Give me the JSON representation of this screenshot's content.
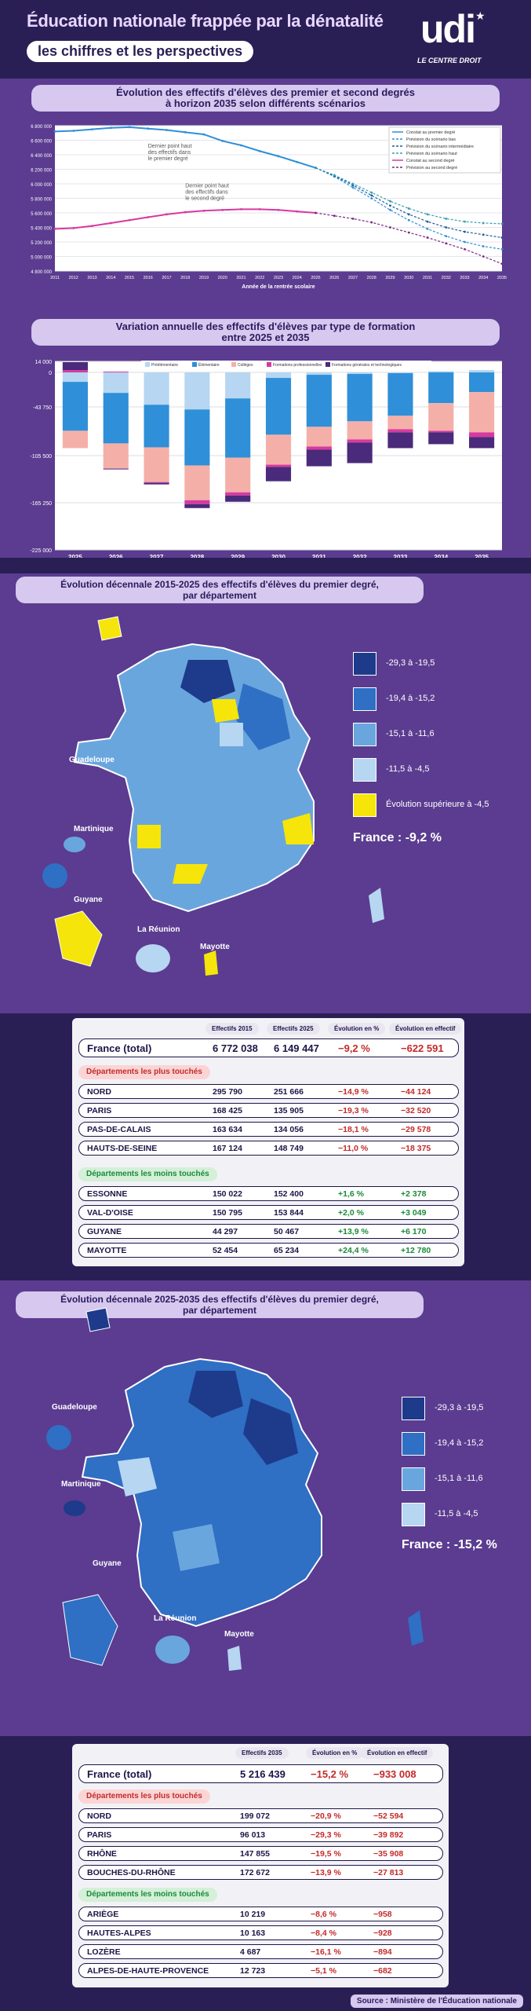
{
  "header": {
    "title": "Éducation nationale frappée par la dénatalité",
    "subtitle": "les chiffres et les perspectives",
    "logo_text": "udi",
    "logo_tag": "LE CENTRE DROIT"
  },
  "colors": {
    "bg_dark": "#2a1f55",
    "purple": "#5a3a8e",
    "dark_blue": "#1e3a8a",
    "mid_blue": "#2f6fc4",
    "light_blue": "#6aa6de",
    "pale_blue": "#b6d6f2",
    "yellow": "#f5e50a",
    "red": "#c42a2a",
    "green": "#1b8a3a"
  },
  "chart1": {
    "title_line1": "Évolution des effectifs d'élèves des premier et second degrés",
    "title_line2": "à horizon 2035 selon différents scénarios",
    "xlabel": "Année de la rentrée scolaire",
    "annotation1": [
      "Dernier point haut",
      "des effectifs dans",
      "le premier degré"
    ],
    "annotation2": [
      "Dernier point haut",
      "des effectifs dans",
      "le second degré"
    ],
    "legend": [
      "Constat au premier degré",
      "Prévision du scénario bas",
      "Prévision du scénario intermédiaire",
      "Prévision du scénario haut",
      "Constat au second degré",
      "Prévision au second degré"
    ],
    "yticks": [
      "6 800 000",
      "6 600 000",
      "6 400 000",
      "6 200 000",
      "6 000 000",
      "5 800 000",
      "5 600 000",
      "5 400 000",
      "5 200 000",
      "5 000 000",
      "4 800 000"
    ]
  },
  "chart_data": [
    {
      "type": "line",
      "title": "Évolution des effectifs d'élèves des premier et second degrés à horizon 2035 selon différents scénarios",
      "xlabel": "Année de la rentrée scolaire",
      "ylim": [
        4800000,
        6800000
      ],
      "x": [
        2011,
        2012,
        2013,
        2014,
        2015,
        2016,
        2017,
        2018,
        2019,
        2020,
        2021,
        2022,
        2023,
        2024,
        2025,
        2026,
        2027,
        2028,
        2029,
        2030,
        2031,
        2032,
        2033,
        2034,
        2035
      ],
      "series": [
        {
          "name": "Constat au premier degré",
          "values": [
            6720000,
            6730000,
            6750000,
            6770000,
            6780000,
            6760000,
            6740000,
            6710000,
            6680000,
            6590000,
            6530000,
            6450000,
            6380000,
            6300000,
            6220000,
            null,
            null,
            null,
            null,
            null,
            null,
            null,
            null,
            null,
            null
          ]
        },
        {
          "name": "Prévision du scénario bas",
          "values": [
            null,
            null,
            null,
            null,
            null,
            null,
            null,
            null,
            null,
            null,
            null,
            null,
            null,
            null,
            6220000,
            6100000,
            5950000,
            5800000,
            5640000,
            5500000,
            5380000,
            5280000,
            5200000,
            5140000,
            5100000
          ]
        },
        {
          "name": "Prévision du scénario intermédiaire",
          "values": [
            null,
            null,
            null,
            null,
            null,
            null,
            null,
            null,
            null,
            null,
            null,
            null,
            null,
            null,
            6220000,
            6110000,
            5980000,
            5840000,
            5700000,
            5580000,
            5480000,
            5400000,
            5340000,
            5300000,
            5260000
          ]
        },
        {
          "name": "Prévision du scénario haut",
          "values": [
            null,
            null,
            null,
            null,
            null,
            null,
            null,
            null,
            null,
            null,
            null,
            null,
            null,
            null,
            6220000,
            6120000,
            6000000,
            5880000,
            5760000,
            5660000,
            5580000,
            5520000,
            5480000,
            5460000,
            5450000
          ]
        },
        {
          "name": "Constat au second degré",
          "values": [
            5380000,
            5390000,
            5420000,
            5460000,
            5500000,
            5540000,
            5580000,
            5610000,
            5630000,
            5640000,
            5650000,
            5650000,
            5640000,
            5620000,
            5600000,
            null,
            null,
            null,
            null,
            null,
            null,
            null,
            null,
            null,
            null
          ]
        },
        {
          "name": "Prévision au second degré",
          "values": [
            null,
            null,
            null,
            null,
            null,
            null,
            null,
            null,
            null,
            null,
            null,
            null,
            null,
            null,
            5600000,
            5560000,
            5520000,
            5470000,
            5400000,
            5330000,
            5260000,
            5180000,
            5100000,
            5000000,
            4900000
          ]
        }
      ]
    },
    {
      "type": "bar",
      "title": "Variation annuelle des effectifs d'élèves par type de formation entre 2025 et 2035",
      "categories": [
        "2025",
        "2026",
        "2027",
        "2028",
        "2029",
        "2030",
        "2031",
        "2032",
        "2033",
        "2034",
        "2035"
      ],
      "ylim": [
        -225000,
        14000
      ],
      "yticks": [
        14000,
        0,
        -43750,
        -105500,
        -165250,
        -225000
      ],
      "series": [
        {
          "name": "Préélémentaire",
          "color": "#b6d6f2",
          "values": [
            -12000,
            -26000,
            -41000,
            -47000,
            -33000,
            -7000,
            -3000,
            -2000,
            -1000,
            1500,
            3000
          ]
        },
        {
          "name": "Élémentaire",
          "color": "#2f8fd8",
          "values": [
            -62000,
            -64000,
            -54000,
            -71000,
            -75000,
            -72000,
            -66000,
            -60000,
            -54000,
            -39000,
            -25000
          ]
        },
        {
          "name": "Collèges",
          "color": "#f4b0a8",
          "values": [
            -22000,
            -32000,
            -44000,
            -44000,
            -44000,
            -38000,
            -25000,
            -23000,
            -17000,
            -35000,
            -51000
          ]
        },
        {
          "name": "Formations professionnelles",
          "color": "#d63aa0",
          "values": [
            3000,
            1000,
            -1000,
            -5000,
            -4000,
            -3000,
            -4000,
            -4000,
            -4000,
            -2000,
            -6000
          ]
        },
        {
          "name": "Formations générales et technologiques",
          "color": "#4a2a7a",
          "values": [
            10000,
            -1000,
            -2000,
            -5000,
            -8000,
            -18000,
            -21000,
            -26000,
            -20000,
            -15000,
            -14000
          ]
        }
      ]
    }
  ],
  "chart2": {
    "title_line1": "Variation annuelle des effectifs d'élèves par type de formation",
    "title_line2": "entre 2025 et 2035",
    "ytick_labels": [
      "14 000",
      "0",
      "-43 750",
      "-105 500",
      "-165 250",
      "-225 000"
    ],
    "legend": [
      "Préélémentaire",
      "Élémentaire",
      "Collèges",
      "Formations professionnelles",
      "Formations générales et technologiques"
    ]
  },
  "map1": {
    "title_line1": "Évolution décennale 2015-2025 des effectifs d'élèves du premier degré,",
    "title_line2": "par département",
    "legend": [
      "-29,3 à -19,5",
      "-19,4 à -15,2",
      "-15,1 à -11,6",
      "-11,5 à -4,5",
      "Évolution supérieure à -4,5"
    ],
    "total": "France : -9,2 %",
    "labels": [
      "Guadeloupe",
      "Martinique",
      "Guyane",
      "La Réunion",
      "Mayotte"
    ]
  },
  "table1": {
    "headers": [
      "Effectifs 2015",
      "Effectifs 2025",
      "Évolution en %",
      "Évolution en effectif"
    ],
    "total": {
      "name": "France (total)",
      "v1": "6 772 038",
      "v2": "6 149 447",
      "pct": "−9,2 %",
      "eff": "−622 591"
    },
    "worst_label": "Départements les plus touchés",
    "worst": [
      {
        "name": "NORD",
        "v1": "295 790",
        "v2": "251 666",
        "pct": "−14,9 %",
        "eff": "−44 124"
      },
      {
        "name": "PARIS",
        "v1": "168 425",
        "v2": "135 905",
        "pct": "−19,3 %",
        "eff": "−32 520"
      },
      {
        "name": "PAS-DE-CALAIS",
        "v1": "163 634",
        "v2": "134 056",
        "pct": "−18,1 %",
        "eff": "−29 578"
      },
      {
        "name": "HAUTS-DE-SEINE",
        "v1": "167 124",
        "v2": "148 749",
        "pct": "−11,0 %",
        "eff": "−18 375"
      }
    ],
    "best_label": "Départements les moins touchés",
    "best": [
      {
        "name": "ESSONNE",
        "v1": "150 022",
        "v2": "152 400",
        "pct": "+1,6 %",
        "eff": "+2 378"
      },
      {
        "name": "VAL-D'OISE",
        "v1": "150 795",
        "v2": "153 844",
        "pct": "+2,0 %",
        "eff": "+3 049"
      },
      {
        "name": "GUYANE",
        "v1": "44 297",
        "v2": "50 467",
        "pct": "+13,9 %",
        "eff": "+6 170"
      },
      {
        "name": "MAYOTTE",
        "v1": "52 454",
        "v2": "65 234",
        "pct": "+24,4 %",
        "eff": "+12 780"
      }
    ]
  },
  "map2": {
    "title_line1": "Évolution décennale 2025-2035 des effectifs d'élèves du premier degré,",
    "title_line2": "par département",
    "legend": [
      "-29,3 à -19,5",
      "-19,4 à -15,2",
      "-15,1 à -11,6",
      "-11,5 à -4,5"
    ],
    "total": "France : -15,2 %",
    "labels": [
      "Guadeloupe",
      "Martinique",
      "Guyane",
      "La Réunion",
      "Mayotte"
    ]
  },
  "table2": {
    "headers": [
      "Effectifs 2035",
      "Évolution en %",
      "Évolution en effectif"
    ],
    "total": {
      "name": "France (total)",
      "v1": "5 216 439",
      "pct": "−15,2 %",
      "eff": "−933 008"
    },
    "worst_label": "Départements les plus touchés",
    "worst": [
      {
        "name": "NORD",
        "v1": "199 072",
        "pct": "−20,9 %",
        "eff": "−52 594"
      },
      {
        "name": "PARIS",
        "v1": "96 013",
        "pct": "−29,3 %",
        "eff": "−39 892"
      },
      {
        "name": "RHÔNE",
        "v1": "147 855",
        "pct": "−19,5 %",
        "eff": "−35 908"
      },
      {
        "name": "BOUCHES-DU-RHÔNE",
        "v1": "172 672",
        "pct": "−13,9 %",
        "eff": "−27 813"
      }
    ],
    "best_label": "Départements les moins touchés",
    "best": [
      {
        "name": "ARIÈGE",
        "v1": "10 219",
        "pct": "−8,6 %",
        "eff": "−958"
      },
      {
        "name": "HAUTES-ALPES",
        "v1": "10 163",
        "pct": "−8,4 %",
        "eff": "−928"
      },
      {
        "name": "LOZÈRE",
        "v1": "4 687",
        "pct": "−16,1 %",
        "eff": "−894"
      },
      {
        "name": "ALPES-DE-HAUTE-PROVENCE",
        "v1": "12 723",
        "pct": "−5,1 %",
        "eff": "−682"
      }
    ]
  },
  "footer": {
    "source": "Source : Ministère de l'Éducation nationale"
  }
}
